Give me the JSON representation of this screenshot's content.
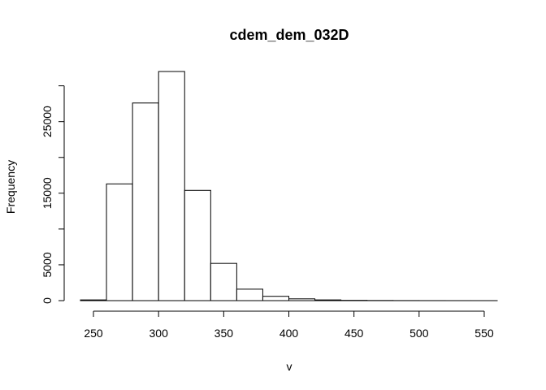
{
  "chart_data": {
    "type": "bar",
    "title": "cdem_dem_032D",
    "xlabel": "v",
    "ylabel": "Frequency",
    "bin_edges": [
      240,
      260,
      280,
      300,
      320,
      340,
      360,
      380,
      400,
      420,
      440,
      460,
      480,
      500,
      520,
      540,
      560
    ],
    "values": [
      100,
      16300,
      27600,
      32000,
      15400,
      5200,
      1600,
      600,
      250,
      100,
      40,
      20,
      10,
      5,
      2,
      1
    ],
    "xlim": [
      240,
      560
    ],
    "ylim": [
      0,
      32000
    ],
    "x_ticks": [
      "250",
      "300",
      "350",
      "400",
      "450",
      "500",
      "550"
    ],
    "y_ticks": [
      "0",
      "5000",
      "15000",
      "25000"
    ],
    "grid": false,
    "bar_color": "#ffffff",
    "edge_color": "#000000"
  }
}
